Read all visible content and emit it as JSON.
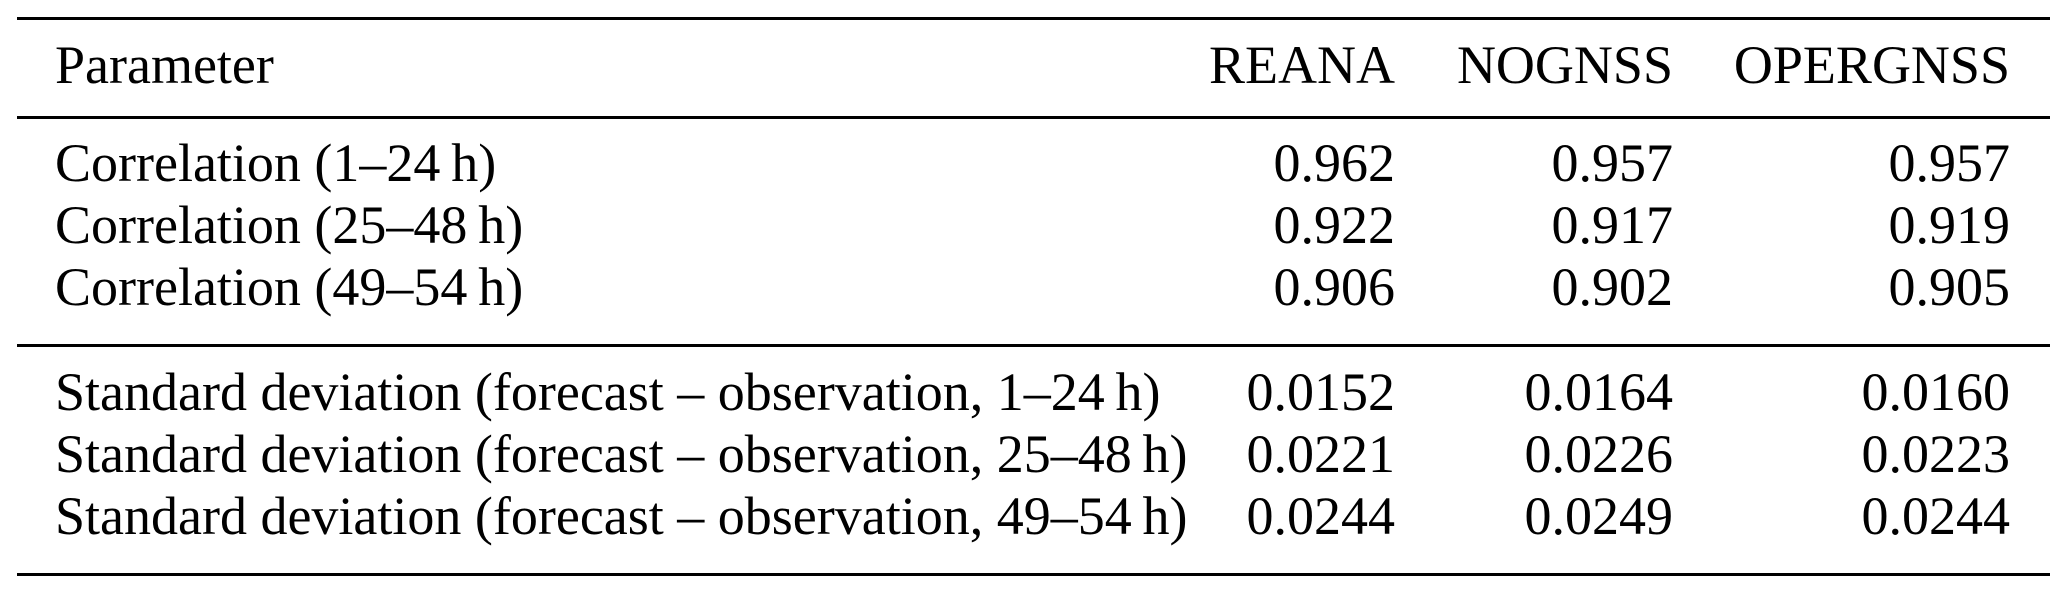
{
  "table": {
    "columns": [
      "Parameter",
      "REANA",
      "NOGNSS",
      "OPERGNSS"
    ],
    "sections": [
      {
        "rows": [
          {
            "parameter": "Correlation (1–24 h)",
            "values": [
              "0.962",
              "0.957",
              "0.957"
            ]
          },
          {
            "parameter": "Correlation (25–48 h)",
            "values": [
              "0.922",
              "0.917",
              "0.919"
            ]
          },
          {
            "parameter": "Correlation (49–54 h)",
            "values": [
              "0.906",
              "0.902",
              "0.905"
            ]
          }
        ]
      },
      {
        "rows": [
          {
            "parameter": "Standard deviation (forecast – observation, 1–24 h)",
            "values": [
              "0.0152",
              "0.0164",
              "0.0160"
            ]
          },
          {
            "parameter": "Standard deviation (forecast – observation, 25–48 h)",
            "values": [
              "0.0221",
              "0.0226",
              "0.0223"
            ]
          },
          {
            "parameter": "Standard deviation (forecast – observation, 49–54 h)",
            "values": [
              "0.0244",
              "0.0249",
              "0.0244"
            ]
          }
        ]
      }
    ]
  },
  "colors": {
    "background": "#ffffff",
    "text": "#000000",
    "rule": "#000000"
  },
  "chart_data": {
    "type": "table",
    "columns": [
      "Parameter",
      "REANA",
      "NOGNSS",
      "OPERGNSS"
    ],
    "rows": [
      [
        "Correlation (1–24 h)",
        0.962,
        0.957,
        0.957
      ],
      [
        "Correlation (25–48 h)",
        0.922,
        0.917,
        0.919
      ],
      [
        "Correlation (49–54 h)",
        0.906,
        0.902,
        0.905
      ],
      [
        "Standard deviation (forecast – observation, 1–24 h)",
        0.0152,
        0.0164,
        0.016
      ],
      [
        "Standard deviation (forecast – observation, 25–48 h)",
        0.0221,
        0.0226,
        0.0223
      ],
      [
        "Standard deviation (forecast – observation, 49–54 h)",
        0.0244,
        0.0249,
        0.0244
      ]
    ]
  }
}
